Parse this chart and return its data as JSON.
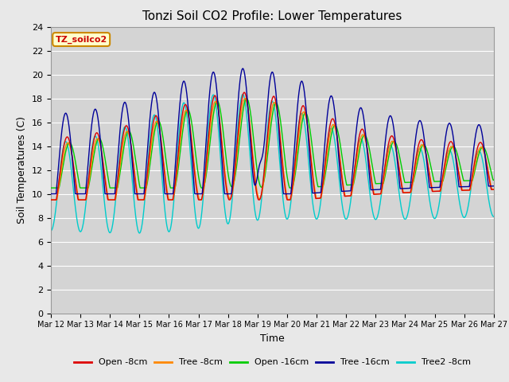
{
  "title": "Tonzi Soil CO2 Profile: Lower Temperatures",
  "xlabel": "Time",
  "ylabel": "Soil Temperatures (C)",
  "ylim": [
    0,
    24
  ],
  "yticks": [
    0,
    2,
    4,
    6,
    8,
    10,
    12,
    14,
    16,
    18,
    20,
    22,
    24
  ],
  "xtick_labels": [
    "Mar 12",
    "Mar 13",
    "Mar 14",
    "Mar 15",
    "Mar 16",
    "Mar 17",
    "Mar 18",
    "Mar 19",
    "Mar 20",
    "Mar 21",
    "Mar 22",
    "Mar 23",
    "Mar 24",
    "Mar 25",
    "Mar 26",
    "Mar 27"
  ],
  "series_colors": {
    "open_8cm": "#dd0000",
    "tree_8cm": "#ff8800",
    "open_16cm": "#00cc00",
    "tree_16cm": "#000099",
    "tree2_8cm": "#00cccc"
  },
  "legend_labels": [
    "Open -8cm",
    "Tree -8cm",
    "Open -16cm",
    "Tree -16cm",
    "Tree2 -8cm"
  ],
  "watermark_text": "TZ_soilco2",
  "fig_bg_color": "#e8e8e8",
  "plot_bg_color": "#d4d4d4",
  "grid_color": "#ffffff",
  "title_fontsize": 11,
  "axis_label_fontsize": 9,
  "tick_fontsize": 8
}
